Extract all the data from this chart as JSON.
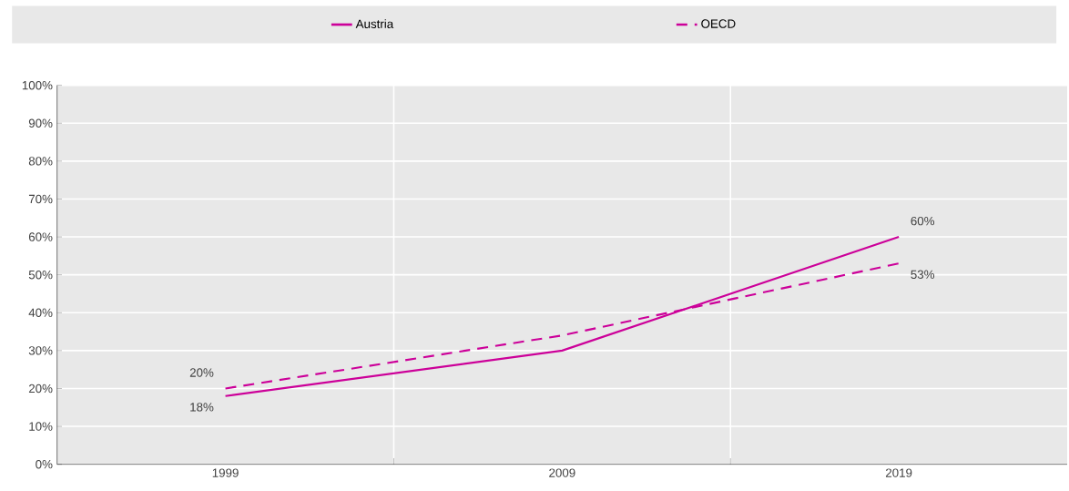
{
  "chart_data": {
    "type": "line",
    "categories": [
      "1999",
      "2009",
      "2019"
    ],
    "series": [
      {
        "name": "Austria",
        "color": "#cc0099",
        "line_style": "solid",
        "values": [
          18,
          30,
          60
        ],
        "value_labels": [
          "18%",
          null,
          "60%"
        ]
      },
      {
        "name": "OECD",
        "color": "#cc0099",
        "line_style": "dashed",
        "values": [
          20,
          34,
          53
        ],
        "value_labels": [
          "20%",
          null,
          "53%"
        ]
      }
    ],
    "ylim": [
      0,
      100
    ],
    "yticks": [
      {
        "value": 0,
        "label": "0%"
      },
      {
        "value": 10,
        "label": "10%"
      },
      {
        "value": 20,
        "label": "20%"
      },
      {
        "value": 30,
        "label": "30%"
      },
      {
        "value": 40,
        "label": "40%"
      },
      {
        "value": 50,
        "label": "50%"
      },
      {
        "value": 60,
        "label": "60%"
      },
      {
        "value": 70,
        "label": "70%"
      },
      {
        "value": 80,
        "label": "80%"
      },
      {
        "value": 90,
        "label": "90%"
      },
      {
        "value": 100,
        "label": "100%"
      }
    ],
    "grid": true,
    "legend": "top"
  }
}
